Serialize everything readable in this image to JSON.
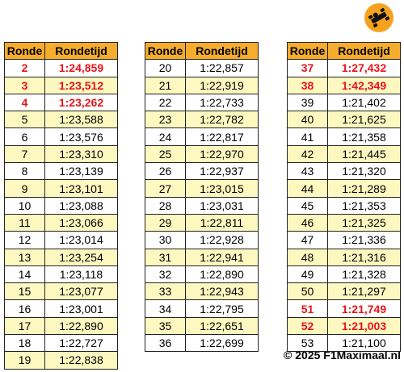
{
  "tables": [
    {
      "header": [
        "Ronde",
        "Rondetijd"
      ],
      "rows": [
        {
          "cells": [
            2,
            "1:24,859"
          ],
          "color": "#e8141b"
        },
        {
          "cells": [
            3,
            "1:23,512"
          ],
          "color": "#e8141b"
        },
        {
          "cells": [
            4,
            "1:23,262"
          ],
          "color": "#e8141b"
        },
        {
          "cells": [
            5,
            "1:23,588"
          ]
        },
        {
          "cells": [
            6,
            "1:23,576"
          ]
        },
        {
          "cells": [
            7,
            "1:23,310"
          ]
        },
        {
          "cells": [
            8,
            "1:23,139"
          ]
        },
        {
          "cells": [
            9,
            "1:23,101"
          ]
        },
        {
          "cells": [
            10,
            "1:23,088"
          ]
        },
        {
          "cells": [
            11,
            "1:23,066"
          ]
        },
        {
          "cells": [
            12,
            "1:23,014"
          ]
        },
        {
          "cells": [
            13,
            "1:23,254"
          ]
        },
        {
          "cells": [
            14,
            "1:23,118"
          ]
        },
        {
          "cells": [
            15,
            "1:23,077"
          ]
        },
        {
          "cells": [
            16,
            "1:23,001"
          ]
        },
        {
          "cells": [
            17,
            "1:22,890"
          ]
        },
        {
          "cells": [
            18,
            "1:22,727"
          ]
        },
        {
          "cells": [
            19,
            "1:22,838"
          ]
        }
      ]
    },
    {
      "header": [
        "Ronde",
        "Rondetijd"
      ],
      "rows": [
        {
          "cells": [
            20,
            "1:22,857"
          ]
        },
        {
          "cells": [
            21,
            "1:22,919"
          ]
        },
        {
          "cells": [
            22,
            "1:22,733"
          ]
        },
        {
          "cells": [
            23,
            "1:22,782"
          ]
        },
        {
          "cells": [
            24,
            "1:22,817"
          ]
        },
        {
          "cells": [
            25,
            "1:22,970"
          ]
        },
        {
          "cells": [
            26,
            "1:22,937"
          ]
        },
        {
          "cells": [
            27,
            "1:23,015"
          ]
        },
        {
          "cells": [
            28,
            "1:23,031"
          ]
        },
        {
          "cells": [
            29,
            "1:22,811"
          ]
        },
        {
          "cells": [
            30,
            "1:22,928"
          ]
        },
        {
          "cells": [
            31,
            "1:22,941"
          ]
        },
        {
          "cells": [
            32,
            "1:22,890"
          ]
        },
        {
          "cells": [
            33,
            "1:22,943"
          ]
        },
        {
          "cells": [
            34,
            "1:22,795"
          ]
        },
        {
          "cells": [
            35,
            "1:22,651"
          ]
        },
        {
          "cells": [
            36,
            "1:22,699"
          ]
        }
      ]
    },
    {
      "header": [
        "Ronde",
        "Rondetijd"
      ],
      "rows": [
        {
          "cells": [
            37,
            "1:27,432"
          ],
          "color": "#e8141b"
        },
        {
          "cells": [
            38,
            "1:42,349"
          ],
          "color": "#e8141b"
        },
        {
          "cells": [
            39,
            "1:21,402"
          ]
        },
        {
          "cells": [
            40,
            "1:21,625"
          ]
        },
        {
          "cells": [
            41,
            "1:21,358"
          ]
        },
        {
          "cells": [
            42,
            "1:21,445"
          ]
        },
        {
          "cells": [
            43,
            "1:21,320"
          ]
        },
        {
          "cells": [
            44,
            "1:21,289"
          ]
        },
        {
          "cells": [
            45,
            "1:21,353"
          ]
        },
        {
          "cells": [
            46,
            "1:21,325"
          ]
        },
        {
          "cells": [
            47,
            "1:21,336"
          ]
        },
        {
          "cells": [
            48,
            "1:21,316"
          ]
        },
        {
          "cells": [
            49,
            "1:21,328"
          ]
        },
        {
          "cells": [
            50,
            "1:21,297"
          ]
        },
        {
          "cells": [
            51,
            "1:21,749"
          ],
          "color": "#e8141b"
        },
        {
          "cells": [
            52,
            "1:21,003"
          ],
          "color": "#e8141b"
        },
        {
          "cells": [
            53,
            "1:21,100"
          ]
        }
      ]
    }
  ],
  "footer": "© 2025 F1Maximaal.nl"
}
